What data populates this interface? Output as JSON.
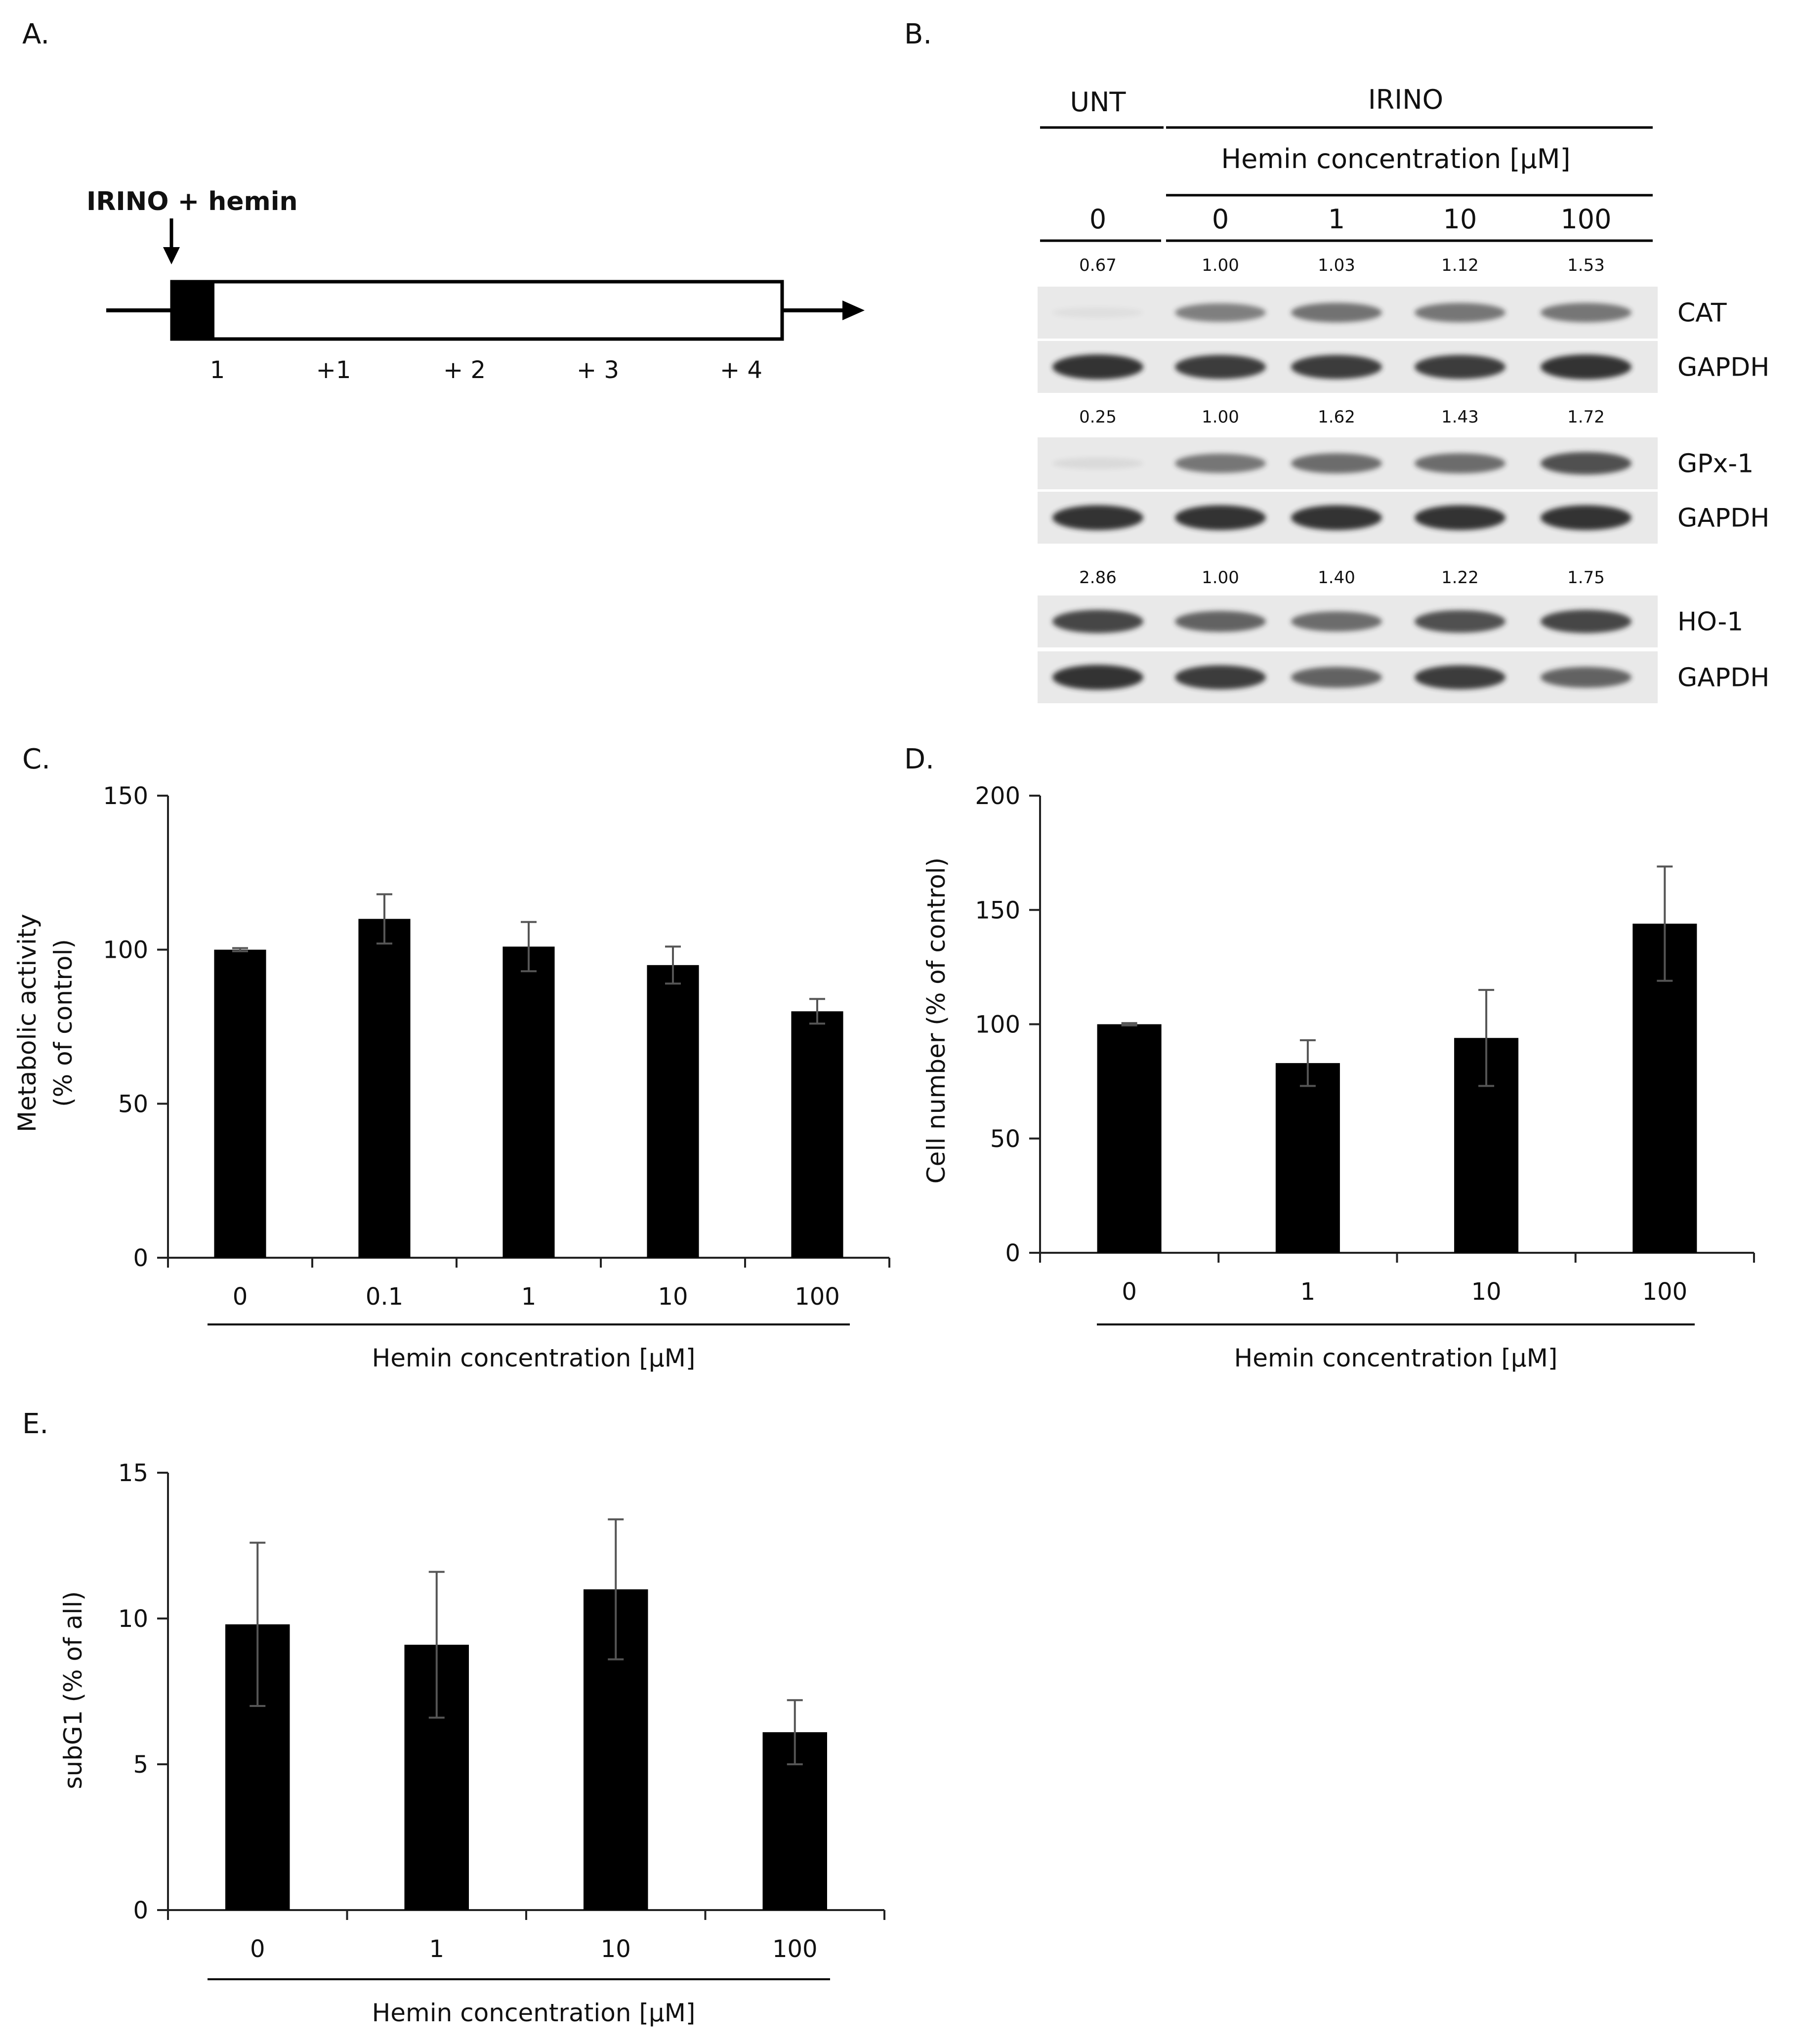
{
  "colors": {
    "bar": "#000000",
    "axis": "#222222",
    "errbar": "#555555",
    "band": "#2b2b2b",
    "membrane": "#e9e9e9"
  },
  "panelA": {
    "letter": "A.",
    "treatment_label": "IRINO + hemin",
    "days": [
      "1",
      "+1",
      "+ 2",
      "+ 3",
      "+ 4"
    ]
  },
  "panelB": {
    "letter": "B.",
    "group_unt": "UNT",
    "group_irino": "IRINO",
    "concentration_header": "Hemin concentration [µM]",
    "lanes": [
      "0",
      "0",
      "1",
      "10",
      "100"
    ],
    "blots": [
      {
        "protein": "CAT",
        "loading": "GAPDH",
        "quant": [
          "0.67",
          "1.00",
          "1.03",
          "1.12",
          "1.53"
        ],
        "band_intensity": [
          0.02,
          0.55,
          0.62,
          0.6,
          0.6
        ],
        "loading_intensity": [
          0.95,
          0.9,
          0.9,
          0.9,
          0.95
        ]
      },
      {
        "protein": "GPx-1",
        "loading": "GAPDH",
        "quant": [
          "0.25",
          "1.00",
          "1.62",
          "1.43",
          "1.72"
        ],
        "band_intensity": [
          0.08,
          0.6,
          0.65,
          0.65,
          0.8
        ],
        "loading_intensity": [
          0.95,
          0.95,
          0.95,
          0.95,
          0.95
        ]
      },
      {
        "protein": "HO-1",
        "loading": "GAPDH",
        "quant": [
          "2.86",
          "1.00",
          "1.40",
          "1.22",
          "1.75"
        ],
        "band_intensity": [
          0.85,
          0.7,
          0.65,
          0.8,
          0.85
        ],
        "loading_intensity": [
          0.95,
          0.9,
          0.7,
          0.9,
          0.7
        ]
      }
    ]
  },
  "chart_data": [
    {
      "panel": "C.",
      "type": "bar",
      "categories": [
        "0",
        "0.1",
        "1",
        "10",
        "100"
      ],
      "values": [
        100,
        110,
        101,
        95,
        80
      ],
      "errors": [
        0.5,
        8,
        8,
        6,
        4
      ],
      "ylabel_lines": [
        "Metabolic activity",
        "(% of control)"
      ],
      "xlabel": "Hemin concentration [µM]",
      "ylim": [
        0,
        150
      ],
      "yticks": [
        0,
        50,
        100,
        150
      ]
    },
    {
      "panel": "D.",
      "type": "bar",
      "categories": [
        "0",
        "1",
        "10",
        "100"
      ],
      "values": [
        100,
        83,
        94,
        144
      ],
      "errors": [
        0.5,
        10,
        21,
        25
      ],
      "ylabel_lines": [
        "Cell number (% of control)"
      ],
      "xlabel": "Hemin concentration [µM]",
      "ylim": [
        0,
        200
      ],
      "yticks": [
        0,
        50,
        100,
        150,
        200
      ]
    },
    {
      "panel": "E.",
      "type": "bar",
      "categories": [
        "0",
        "1",
        "10",
        "100"
      ],
      "values": [
        9.8,
        9.1,
        11.0,
        6.1
      ],
      "errors": [
        2.8,
        2.5,
        2.4,
        1.1
      ],
      "ylabel_lines": [
        "subG1 (% of all)"
      ],
      "xlabel": "Hemin concentration [µM]",
      "ylim": [
        0,
        15
      ],
      "yticks": [
        0,
        5,
        10,
        15
      ]
    }
  ]
}
